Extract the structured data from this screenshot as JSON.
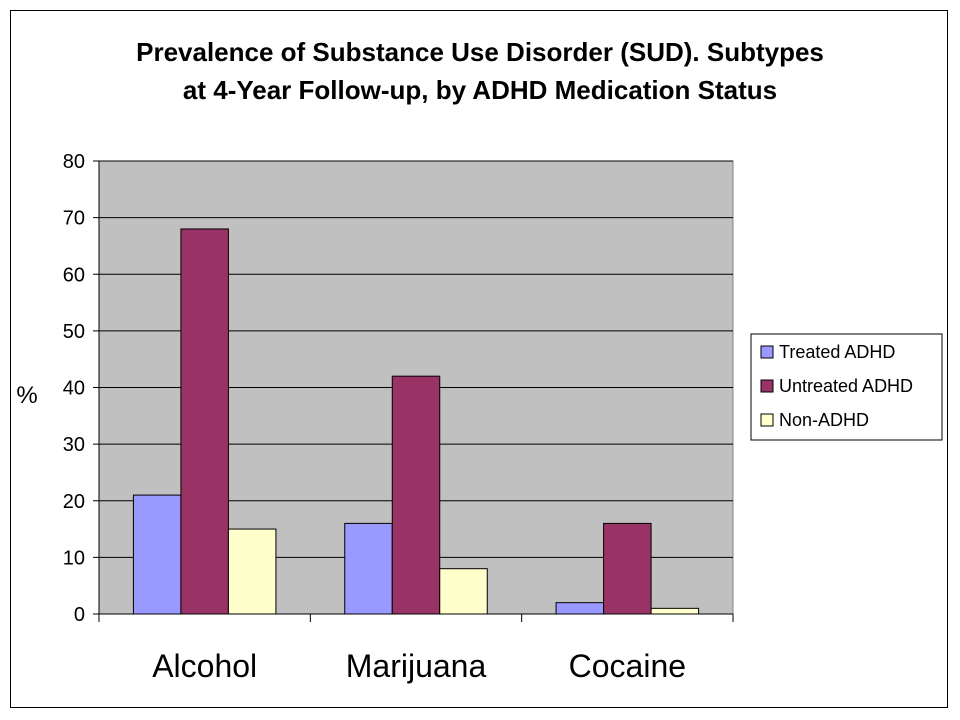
{
  "title": {
    "line1": "Prevalence of Substance Use Disorder (SUD). Subtypes",
    "line2": "at 4-Year Follow-up, by ADHD Medication Status"
  },
  "chart_data": {
    "type": "bar",
    "title": "Prevalence of Substance Use Disorder (SUD). Subtypes at 4-Year Follow-up, by ADHD Medication Status",
    "xlabel": "",
    "ylabel": "%",
    "ylim": [
      0,
      80
    ],
    "yticks": [
      0,
      10,
      20,
      30,
      40,
      50,
      60,
      70,
      80
    ],
    "grid": true,
    "legend_position": "right",
    "plot_background": "#C0C0C0",
    "categories": [
      "Alcohol",
      "Marijuana",
      "Cocaine"
    ],
    "series": [
      {
        "name": "Treated ADHD",
        "color": "#9999FF",
        "values": [
          21,
          16,
          2
        ]
      },
      {
        "name": "Untreated ADHD",
        "color": "#993366",
        "values": [
          68,
          42,
          16
        ]
      },
      {
        "name": "Non-ADHD",
        "color": "#FFFFCC",
        "values": [
          15,
          8,
          1
        ]
      }
    ]
  }
}
